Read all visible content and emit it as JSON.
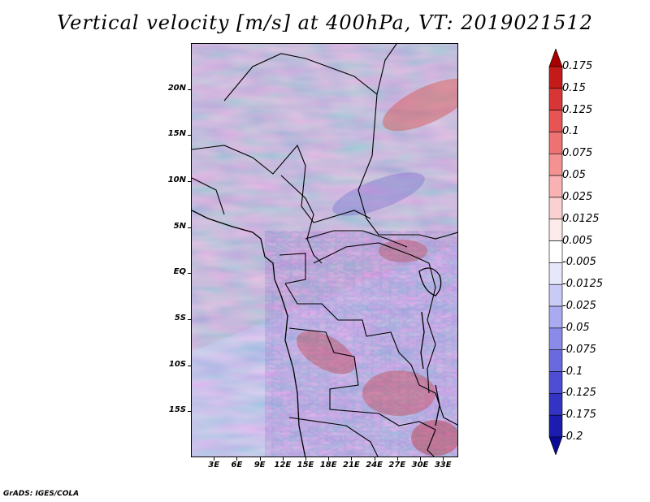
{
  "title": "Vertical velocity [m/s] at 400hPa, VT: 2019021512",
  "footer": "GrADS: IGES/COLA",
  "map": {
    "lon_range": [
      0,
      35
    ],
    "lat_range": [
      -20,
      25
    ],
    "lat_labels": [
      {
        "value": 20,
        "text": "20N"
      },
      {
        "value": 15,
        "text": "15N"
      },
      {
        "value": 10,
        "text": "10N"
      },
      {
        "value": 5,
        "text": "5N"
      },
      {
        "value": 0,
        "text": "EQ"
      },
      {
        "value": -5,
        "text": "5S"
      },
      {
        "value": -10,
        "text": "10S"
      },
      {
        "value": -15,
        "text": "15S"
      }
    ],
    "lon_labels": [
      {
        "value": 3,
        "text": "3E"
      },
      {
        "value": 6,
        "text": "6E"
      },
      {
        "value": 9,
        "text": "9E"
      },
      {
        "value": 12,
        "text": "12E"
      },
      {
        "value": 15,
        "text": "15E"
      },
      {
        "value": 18,
        "text": "18E"
      },
      {
        "value": 21,
        "text": "21E"
      },
      {
        "value": 24,
        "text": "24E"
      },
      {
        "value": 27,
        "text": "27E"
      },
      {
        "value": 30,
        "text": "30E"
      },
      {
        "value": 33,
        "text": "33E"
      }
    ]
  },
  "colorbar": {
    "labels": [
      "0.175",
      "0.15",
      "0.125",
      "0.1",
      "0.075",
      "0.05",
      "0.025",
      "0.0125",
      "0.005",
      "-0.005",
      "-0.0125",
      "-0.025",
      "-0.05",
      "-0.075",
      "-0.1",
      "-0.125",
      "-0.175",
      "-0.2"
    ],
    "colors": [
      "#a80000",
      "#c41a1a",
      "#d83636",
      "#e65454",
      "#ef7272",
      "#f49292",
      "#f8b2b2",
      "#fbd0d0",
      "#fdebeb",
      "#ffffff",
      "#e7e7fb",
      "#cacaf6",
      "#aaaaf0",
      "#8a8ae8",
      "#6a6adf",
      "#4e4ed4",
      "#3434c4",
      "#1c1cae",
      "#0a0a94"
    ]
  }
}
